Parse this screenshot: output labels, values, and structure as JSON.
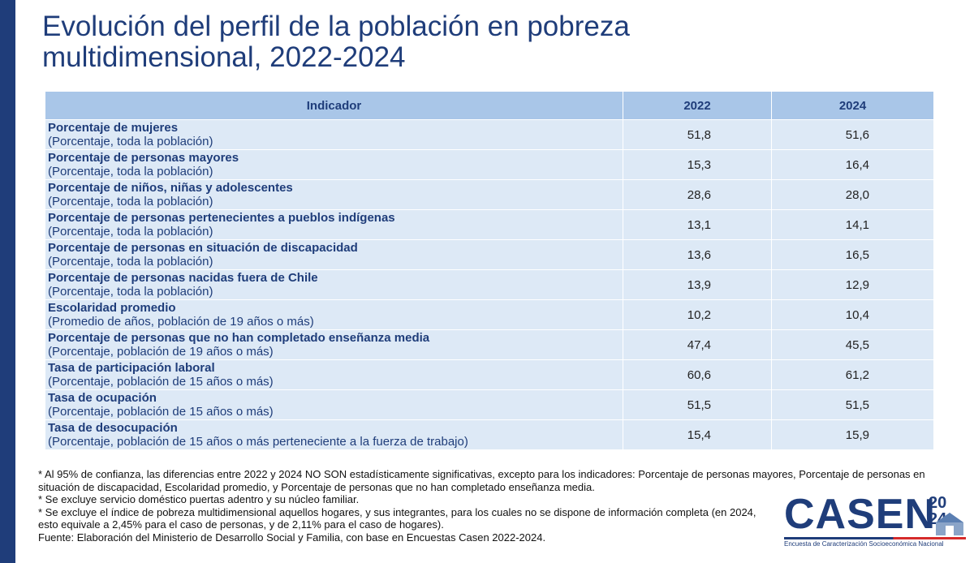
{
  "title": "Evolución del perfil de la población en pobreza multidimensional, 2022-2024",
  "table": {
    "headers": [
      "Indicador",
      "2022",
      "2024"
    ],
    "rows": [
      {
        "title": "Porcentaje de mujeres",
        "sub": "(Porcentaje, toda la población)",
        "v2022": "51,8",
        "v2024": "51,6"
      },
      {
        "title": "Porcentaje de personas mayores",
        "sub": "(Porcentaje, toda la población)",
        "v2022": "15,3",
        "v2024": "16,4"
      },
      {
        "title": "Porcentaje de niños, niñas y adolescentes",
        "sub": "(Porcentaje, toda la población)",
        "v2022": "28,6",
        "v2024": "28,0"
      },
      {
        "title": "Porcentaje de personas pertenecientes a pueblos indígenas",
        "sub": "(Porcentaje, toda la población)",
        "v2022": "13,1",
        "v2024": "14,1"
      },
      {
        "title": "Porcentaje de personas en situación de discapacidad",
        "sub": "(Porcentaje, toda la población)",
        "v2022": "13,6",
        "v2024": "16,5"
      },
      {
        "title": "Porcentaje de personas nacidas fuera de Chile",
        "sub": "(Porcentaje, toda la población)",
        "v2022": "13,9",
        "v2024": "12,9"
      },
      {
        "title": "Escolaridad promedio",
        "sub": "(Promedio de años, población de 19 años o más)",
        "v2022": "10,2",
        "v2024": "10,4"
      },
      {
        "title": "Porcentaje de personas que no han completado enseñanza media",
        "sub": "(Porcentaje, población de 19 años o más)",
        "v2022": "47,4",
        "v2024": "45,5"
      },
      {
        "title": "Tasa de participación laboral",
        "sub": "(Porcentaje, población de 15 años o más)",
        "v2022": "60,6",
        "v2024": "61,2"
      },
      {
        "title": "Tasa de ocupación",
        "sub": "(Porcentaje, población de 15 años o más)",
        "v2022": "51,5",
        "v2024": "51,5"
      },
      {
        "title": "Tasa de desocupación",
        "sub": "(Porcentaje, población de 15 años o más perteneciente a la fuerza de trabajo)",
        "v2022": "15,4",
        "v2024": "15,9"
      }
    ]
  },
  "footnotes": [
    "* Al 95% de confianza, las diferencias entre 2022 y 2024 NO SON estadísticamente significativas, excepto para los indicadores: Porcentaje de personas mayores, Porcentaje de personas en situación de discapacidad, Escolaridad promedio, y Porcentaje de personas que no han completado enseñanza media.",
    "* Se excluye servicio doméstico puertas adentro y su núcleo familiar.",
    "* Se excluye el índice de pobreza multidimensional aquellos hogares, y sus integrantes, para los cuales no se dispone de información completa (en 2024, esto equivale a 2,45% para el caso de personas, y de 2,11% para el caso de hogares).",
    "Fuente: Elaboración del Ministerio de Desarrollo Social y Familia, con base en Encuestas Casen 2022-2024."
  ],
  "logo": {
    "name": "CASEN",
    "years": "20\n24",
    "subtitle": "Encuesta de Caracterización Socioeconómica Nacional"
  },
  "colors": {
    "primary": "#1f3d7a",
    "header_bg": "#a9c6e8",
    "row_bg": "#dde9f6",
    "accent": "#d62b2b"
  }
}
